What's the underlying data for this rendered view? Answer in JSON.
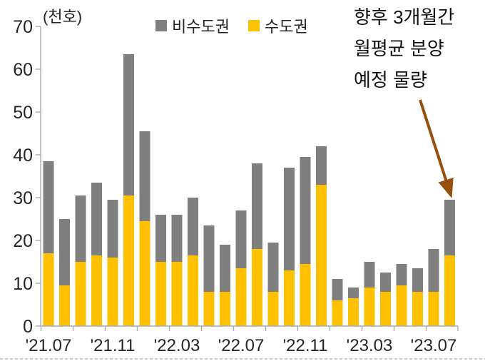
{
  "chart_data": {
    "type": "bar",
    "stacked": true,
    "unit_label": "(천호)",
    "ylim": [
      0,
      70
    ],
    "yticks": [
      0,
      10,
      20,
      30,
      40,
      50,
      60,
      70
    ],
    "n_bars": 26,
    "x_tick_labels": [
      {
        "label": "'21.07",
        "bar": 0
      },
      {
        "label": "'21.11",
        "bar": 4
      },
      {
        "label": "'22.03",
        "bar": 8
      },
      {
        "label": "'22.07",
        "bar": 12
      },
      {
        "label": "'22.11",
        "bar": 16
      },
      {
        "label": "'23.03",
        "bar": 20
      },
      {
        "label": "'23.07",
        "bar": 24
      }
    ],
    "series": [
      {
        "name": "비수도권",
        "color": "#7F7F7F",
        "stack_position": "top",
        "values": [
          21.5,
          15.5,
          15.5,
          17,
          13.5,
          33,
          21,
          11,
          11,
          13.5,
          15.5,
          11,
          13.5,
          20,
          11.5,
          24,
          25,
          9,
          5,
          2.5,
          6,
          4.5,
          5,
          5.5,
          10,
          13
        ]
      },
      {
        "name": "수도권",
        "color": "#FFC000",
        "stack_position": "bottom",
        "values": [
          17,
          9.5,
          15,
          16.5,
          16,
          30.5,
          24.5,
          15,
          15,
          16.5,
          8,
          8,
          13.5,
          18,
          8,
          13,
          14.5,
          33,
          6,
          6.5,
          9,
          8,
          9.5,
          8,
          8,
          16.5
        ]
      }
    ],
    "annotation": {
      "lines": [
        "향후 3개월간",
        "월평균 분양",
        "예정 물량"
      ],
      "arrow_color": "#964F0D",
      "points_to_bar": 25
    },
    "axis_color": "#ABABAB",
    "text_color": "#262626",
    "legend_position": "top",
    "grid": false
  }
}
